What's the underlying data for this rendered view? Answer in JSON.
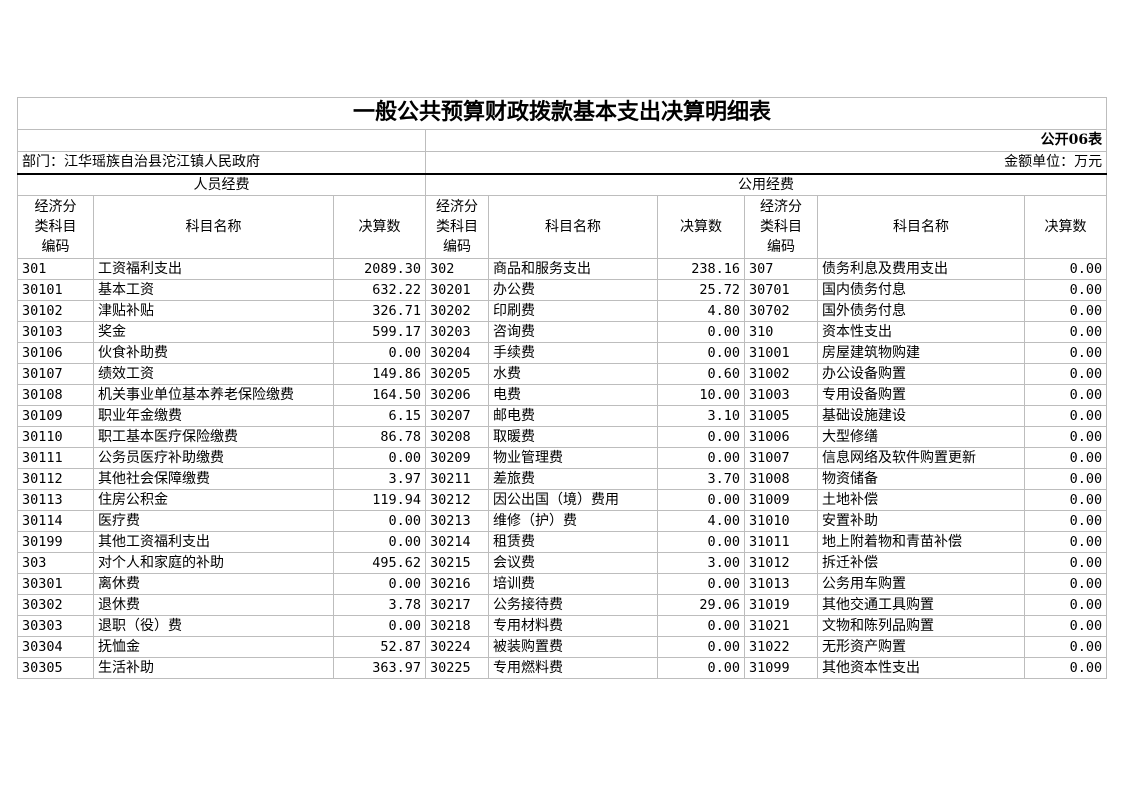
{
  "title": "一般公共预算财政拨款基本支出决算明细表",
  "table_no": "公开06表",
  "department": "部门：江华瑶族自治县沱江镇人民政府",
  "unit": "金额单位：万元",
  "sections": {
    "personnel": "人员经费",
    "public": "公用经费"
  },
  "headers": {
    "code": "经济分类科目编码",
    "name": "科目名称",
    "amount": "决算数"
  },
  "rows": [
    [
      [
        "301",
        "工资福利支出",
        "2089.30"
      ],
      [
        "302",
        "商品和服务支出",
        "238.16"
      ],
      [
        "307",
        "债务利息及费用支出",
        "0.00"
      ]
    ],
    [
      [
        "30101",
        "基本工资",
        "632.22"
      ],
      [
        "30201",
        "办公费",
        "25.72"
      ],
      [
        "30701",
        "国内债务付息",
        "0.00"
      ]
    ],
    [
      [
        "30102",
        "津贴补贴",
        "326.71"
      ],
      [
        "30202",
        "印刷费",
        "4.80"
      ],
      [
        "30702",
        "国外债务付息",
        "0.00"
      ]
    ],
    [
      [
        "30103",
        "奖金",
        "599.17"
      ],
      [
        "30203",
        "咨询费",
        "0.00"
      ],
      [
        "310",
        "资本性支出",
        "0.00"
      ]
    ],
    [
      [
        "30106",
        "伙食补助费",
        "0.00"
      ],
      [
        "30204",
        "手续费",
        "0.00"
      ],
      [
        "31001",
        "房屋建筑物购建",
        "0.00"
      ]
    ],
    [
      [
        "30107",
        "绩效工资",
        "149.86"
      ],
      [
        "30205",
        "水费",
        "0.60"
      ],
      [
        "31002",
        "办公设备购置",
        "0.00"
      ]
    ],
    [
      [
        "30108",
        "机关事业单位基本养老保险缴费",
        "164.50"
      ],
      [
        "30206",
        "电费",
        "10.00"
      ],
      [
        "31003",
        "专用设备购置",
        "0.00"
      ]
    ],
    [
      [
        "30109",
        "职业年金缴费",
        "6.15"
      ],
      [
        "30207",
        "邮电费",
        "3.10"
      ],
      [
        "31005",
        "基础设施建设",
        "0.00"
      ]
    ],
    [
      [
        "30110",
        "职工基本医疗保险缴费",
        "86.78"
      ],
      [
        "30208",
        "取暖费",
        "0.00"
      ],
      [
        "31006",
        "大型修缮",
        "0.00"
      ]
    ],
    [
      [
        "30111",
        "公务员医疗补助缴费",
        "0.00"
      ],
      [
        "30209",
        "物业管理费",
        "0.00"
      ],
      [
        "31007",
        "信息网络及软件购置更新",
        "0.00"
      ]
    ],
    [
      [
        "30112",
        "其他社会保障缴费",
        "3.97"
      ],
      [
        "30211",
        "差旅费",
        "3.70"
      ],
      [
        "31008",
        "物资储备",
        "0.00"
      ]
    ],
    [
      [
        "30113",
        "住房公积金",
        "119.94"
      ],
      [
        "30212",
        "因公出国（境）费用",
        "0.00"
      ],
      [
        "31009",
        "土地补偿",
        "0.00"
      ]
    ],
    [
      [
        "30114",
        "医疗费",
        "0.00"
      ],
      [
        "30213",
        "维修（护）费",
        "4.00"
      ],
      [
        "31010",
        "安置补助",
        "0.00"
      ]
    ],
    [
      [
        "30199",
        "其他工资福利支出",
        "0.00"
      ],
      [
        "30214",
        "租赁费",
        "0.00"
      ],
      [
        "31011",
        "地上附着物和青苗补偿",
        "0.00"
      ]
    ],
    [
      [
        "303",
        "对个人和家庭的补助",
        "495.62"
      ],
      [
        "30215",
        "会议费",
        "3.00"
      ],
      [
        "31012",
        "拆迁补偿",
        "0.00"
      ]
    ],
    [
      [
        "30301",
        "离休费",
        "0.00"
      ],
      [
        "30216",
        "培训费",
        "0.00"
      ],
      [
        "31013",
        "公务用车购置",
        "0.00"
      ]
    ],
    [
      [
        "30302",
        "退休费",
        "3.78"
      ],
      [
        "30217",
        "公务接待费",
        "29.06"
      ],
      [
        "31019",
        "其他交通工具购置",
        "0.00"
      ]
    ],
    [
      [
        "30303",
        "退职（役）费",
        "0.00"
      ],
      [
        "30218",
        "专用材料费",
        "0.00"
      ],
      [
        "31021",
        "文物和陈列品购置",
        "0.00"
      ]
    ],
    [
      [
        "30304",
        "抚恤金",
        "52.87"
      ],
      [
        "30224",
        "被装购置费",
        "0.00"
      ],
      [
        "31022",
        "无形资产购置",
        "0.00"
      ]
    ],
    [
      [
        "30305",
        "生活补助",
        "363.97"
      ],
      [
        "30225",
        "专用燃料费",
        "0.00"
      ],
      [
        "31099",
        "其他资本性支出",
        "0.00"
      ]
    ]
  ]
}
